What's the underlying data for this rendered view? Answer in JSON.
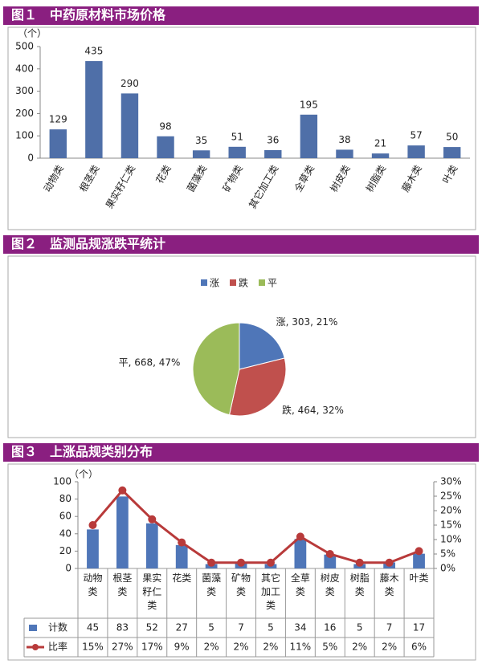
{
  "chart_data": [
    {
      "type": "bar",
      "title": "图１　中药原材料市场价格",
      "y_label": "（个）",
      "categories": [
        "动物类",
        "根茎类",
        "果实籽仁类",
        "花类",
        "菌藻类",
        "矿物类",
        "其它加工类",
        "全草类",
        "树皮类",
        "树脂类",
        "藤木类",
        "叶类"
      ],
      "values": [
        129,
        435,
        290,
        98,
        35,
        51,
        36,
        195,
        38,
        21,
        57,
        50
      ],
      "color": "#4f6fa8",
      "ylim": [
        0,
        500
      ],
      "yticks": [
        0,
        100,
        200,
        300,
        400,
        500
      ]
    },
    {
      "type": "pie",
      "title": "图２　监测品规涨跌平统计",
      "categories": [
        "涨",
        "跌",
        "平"
      ],
      "values": [
        303,
        464,
        668
      ],
      "value_labels": [
        "涨, 303, 21%",
        "跌, 464, 32%",
        "平, 668, 47%"
      ],
      "colors": [
        "#4f76b8",
        "#c0504d",
        "#9bbb59"
      ],
      "legend": "top"
    },
    {
      "type": "combo",
      "title": "图３　上涨品规类别分布",
      "y_label": "（个）",
      "categories": [
        "动物类",
        "根茎类",
        "果实籽仁类",
        "花类",
        "菌藻类",
        "矿物类",
        "其它加工类",
        "全草类",
        "树皮类",
        "树脂类",
        "藤木类",
        "叶类"
      ],
      "series": [
        {
          "name": "计数",
          "type": "bar",
          "color": "#4f76b8",
          "values": [
            45,
            83,
            52,
            27,
            5,
            7,
            5,
            34,
            16,
            5,
            7,
            17
          ]
        },
        {
          "name": "比率",
          "type": "line",
          "axis": "y2",
          "color": "#b83a3a",
          "values": [
            15,
            27,
            17,
            9,
            2,
            2,
            2,
            11,
            5,
            2,
            2,
            6
          ],
          "value_labels": [
            "15%",
            "27%",
            "17%",
            "9%",
            "2%",
            "2%",
            "2%",
            "11%",
            "5%",
            "2%",
            "2%",
            "6%"
          ]
        }
      ],
      "ylim": [
        0,
        100
      ],
      "yticks": [
        0,
        20,
        40,
        60,
        80,
        100
      ],
      "y2lim": [
        0,
        30
      ],
      "y2ticks": [
        {
          "value": 0,
          "label": "0%"
        },
        {
          "value": 5,
          "label": "5%"
        },
        {
          "value": 10,
          "label": "10%"
        },
        {
          "value": 15,
          "label": "15%"
        },
        {
          "value": 20,
          "label": "20%"
        },
        {
          "value": 25,
          "label": "25%"
        },
        {
          "value": 30,
          "label": "30%"
        }
      ],
      "data_table": true
    }
  ]
}
